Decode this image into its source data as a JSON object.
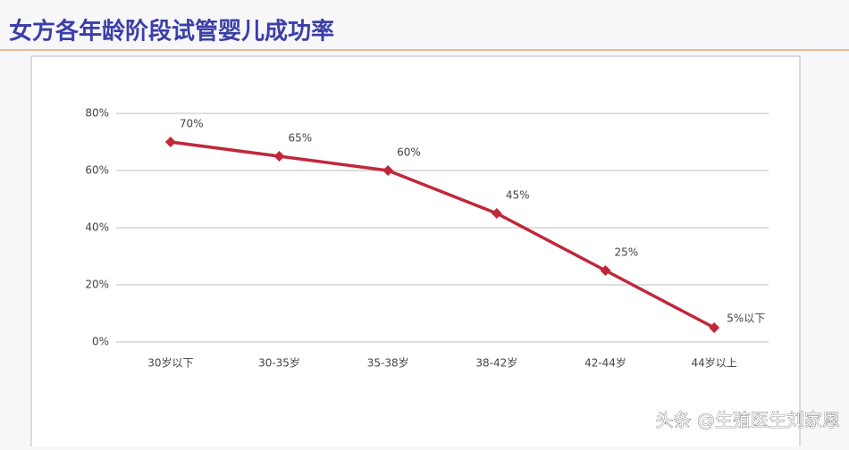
{
  "chart_data": {
    "type": "line",
    "title": "女方各年龄阶段试管婴儿成功率",
    "categories": [
      "30岁以下",
      "30-35岁",
      "35-38岁",
      "38-42岁",
      "42-44岁",
      "44岁以上"
    ],
    "values": [
      70,
      65,
      60,
      45,
      25,
      5
    ],
    "value_labels": [
      "70%",
      "65%",
      "60%",
      "45%",
      "25%",
      "5%以下"
    ],
    "color": "#c0283a",
    "ylim": [
      0,
      80
    ],
    "yticks": [
      {
        "value": 0,
        "label": "0%"
      },
      {
        "value": 20,
        "label": "20%"
      },
      {
        "value": 40,
        "label": "40%"
      },
      {
        "value": 60,
        "label": "60%"
      },
      {
        "value": 80,
        "label": "80%"
      }
    ],
    "grid": true,
    "watermark": "头条 @生殖医生刘家恩"
  }
}
